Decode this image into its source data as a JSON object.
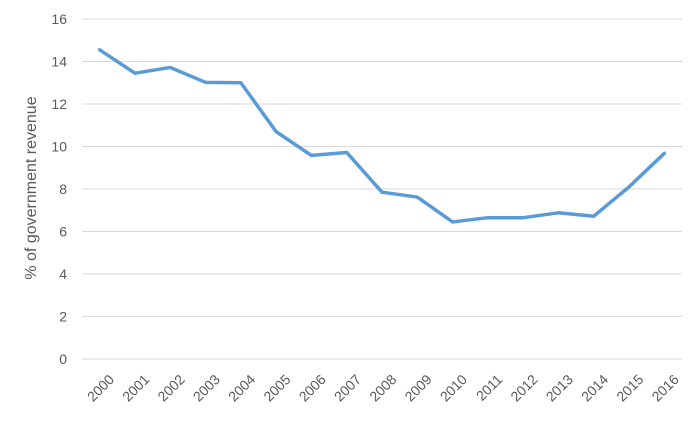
{
  "chart_data": {
    "type": "line",
    "title": "",
    "xlabel": "",
    "ylabel": "% of government revenue",
    "categories": [
      "2000",
      "2001",
      "2002",
      "2003",
      "2004",
      "2005",
      "2006",
      "2007",
      "2008",
      "2009",
      "2010",
      "2011",
      "2012",
      "2013",
      "2014",
      "2015",
      "2016"
    ],
    "series": [
      {
        "values": [
          14.55,
          13.45,
          13.72,
          13.02,
          13.0,
          10.7,
          9.58,
          9.72,
          7.85,
          7.62,
          6.45,
          6.65,
          6.65,
          6.88,
          6.72,
          8.1,
          9.68
        ],
        "color": "#5b9bd5"
      }
    ],
    "ylim": [
      0,
      16
    ],
    "yticks": [
      0,
      2,
      4,
      6,
      8,
      10,
      12,
      14,
      16
    ],
    "grid": true,
    "legend": "none"
  }
}
